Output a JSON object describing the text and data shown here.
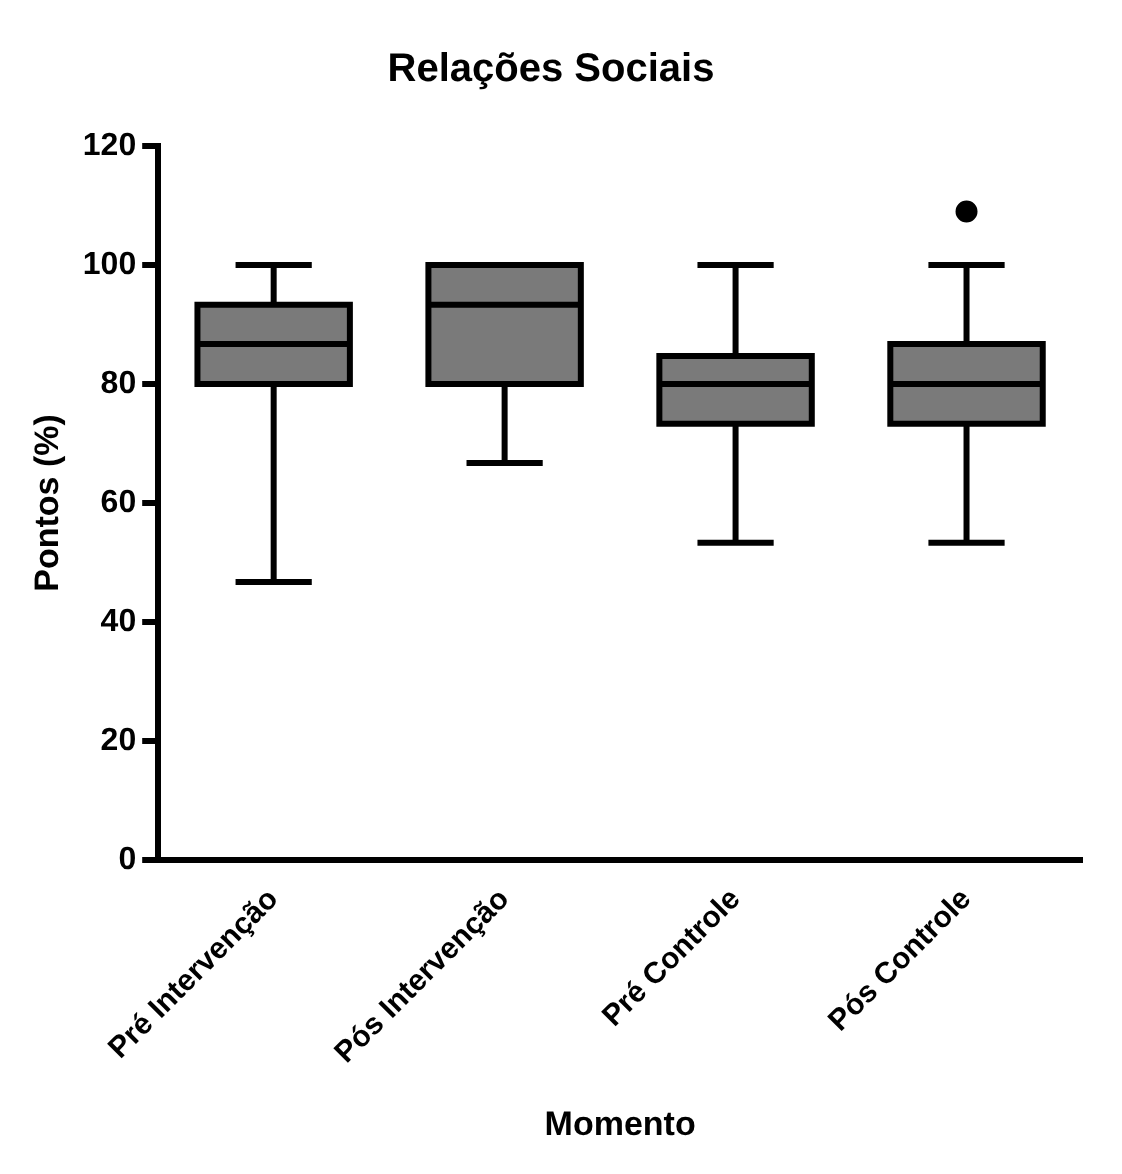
{
  "chart_data": {
    "type": "box",
    "title": "Relações Sociais",
    "xlabel": "Momento",
    "ylabel": "Pontos (%)",
    "categories": [
      "Pré Intervenção",
      "Pós Intervenção",
      "Pré Controle",
      "Pós Controle"
    ],
    "boxes": [
      {
        "low": 46.7,
        "q1": 80,
        "median": 86.7,
        "q3": 93.3,
        "high": 100
      },
      {
        "low": 66.7,
        "q1": 80,
        "median": 93.3,
        "q3": 100,
        "high": 100
      },
      {
        "low": 53.3,
        "q1": 73.3,
        "median": 80,
        "q3": 84.7,
        "high": 100
      },
      {
        "low": 53.3,
        "q1": 73.3,
        "median": 80,
        "q3": 86.7,
        "high": 100,
        "outliers": [
          109
        ]
      }
    ],
    "color": "#7a7a7a",
    "ylim": [
      0,
      120
    ],
    "yticks": [
      0,
      20,
      40,
      60,
      80,
      100,
      120
    ],
    "grid": false,
    "legend": false
  }
}
